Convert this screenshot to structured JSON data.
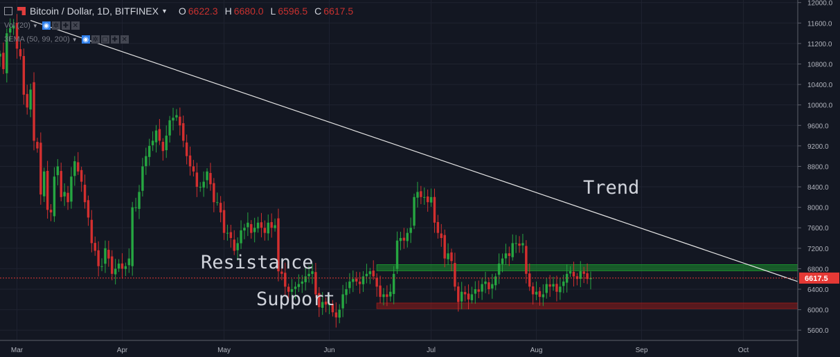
{
  "header": {
    "symbol": "Bitcoin / Dollar, 1D, BITFINEX",
    "open_label": "O",
    "open": "6622.3",
    "high_label": "H",
    "high": "6680.0",
    "low_label": "L",
    "low": "6596.5",
    "close_label": "C",
    "close": "6617.5"
  },
  "indicators": [
    {
      "label": "Vol (20)"
    },
    {
      "label": "3EMA (50, 99, 200)"
    }
  ],
  "annotations": {
    "trend": "Trend",
    "resistance": "Resistance",
    "support": "Support"
  },
  "colors": {
    "background": "#131722",
    "up": "#26a641",
    "down": "#d32f2f",
    "grid": "#1f2330",
    "trendline": "#e6e6e6",
    "resistance_zone": "#1b8f2e",
    "support_zone": "#8f1b1b",
    "price_line": "#e53935"
  },
  "chart_data": {
    "type": "candlestick",
    "title": "Bitcoin / Dollar, 1D, BITFINEX",
    "y_ticks": [
      12000,
      11600,
      11200,
      10800,
      10400,
      10000,
      9600,
      9200,
      8800,
      8400,
      8000,
      7600,
      7200,
      6800,
      6400,
      6000,
      5600
    ],
    "ylim": [
      5400,
      12050
    ],
    "y_labels": [
      "12000.0",
      "11600.0",
      "11200.0",
      "10800.0",
      "10400.0",
      "10000.0",
      "9600.0",
      "9200.0",
      "8800.0",
      "8400.0",
      "8000.0",
      "7600.0",
      "7200.0",
      "6800.0",
      "6400.0",
      "6000.0",
      "5600.0"
    ],
    "x_labels": [
      {
        "label": "Mar",
        "date": "2018-03-01"
      },
      {
        "label": "Apr",
        "date": "2018-04-01"
      },
      {
        "label": "May",
        "date": "2018-05-01"
      },
      {
        "label": "Jun",
        "date": "2018-06-01"
      },
      {
        "label": "Jul",
        "date": "2018-07-01"
      },
      {
        "label": "Aug",
        "date": "2018-08-01"
      },
      {
        "label": "Sep",
        "date": "2018-09-01"
      },
      {
        "label": "Oct",
        "date": "2018-10-01"
      }
    ],
    "x_range": [
      "2018-02-24",
      "2018-10-17"
    ],
    "last_price": 6617.5,
    "last_price_label": "6617.5",
    "trendline": {
      "from": [
        "2018-03-05",
        11650
      ],
      "to": [
        "2018-10-17",
        6550
      ]
    },
    "resistance_zone": {
      "from": "2018-06-15",
      "to": "2018-10-17",
      "low": 6760,
      "high": 6880
    },
    "support_zone": {
      "from": "2018-06-15",
      "to": "2018-10-17",
      "low": 6020,
      "high": 6130
    },
    "closes": [
      11000,
      10700,
      11400,
      11500,
      11550,
      11100,
      10950,
      10200,
      9950,
      10300,
      9300,
      9150,
      8250,
      8700,
      7950,
      7900,
      8600,
      8800,
      8200,
      8300,
      8100,
      8600,
      8900,
      8700,
      8500,
      8100,
      7800,
      7300,
      7150,
      6850,
      6850,
      7200,
      7000,
      6700,
      6800,
      6900,
      6800,
      6850,
      7000,
      8000,
      8000,
      8300,
      8800,
      9000,
      9200,
      9300,
      9500,
      9300,
      9100,
      9400,
      9700,
      9750,
      9800,
      9600,
      9300,
      9000,
      8800,
      8700,
      8400,
      8400,
      8500,
      8700,
      8450,
      8100,
      8100,
      7900,
      7500,
      7500,
      7400,
      7150,
      7300,
      7550,
      7600,
      7700,
      7500,
      7600,
      7700,
      7600,
      7500,
      7700,
      7600,
      7650,
      6750,
      6700,
      6450,
      6350,
      6400,
      6450,
      6500,
      6550,
      6650,
      6700,
      6750,
      6300,
      6050,
      6150,
      6100,
      6100,
      5950,
      5850,
      6000,
      6300,
      6400,
      6550,
      6600,
      6550,
      6500,
      6650,
      6700,
      6750,
      6650,
      6450,
      6250,
      6300,
      6250,
      6350,
      6700,
      7350,
      7400,
      7350,
      7500,
      7600,
      8200,
      8300,
      8200,
      8200,
      8100,
      8200,
      7700,
      7500,
      7400,
      7000,
      7100,
      6950,
      6450,
      6150,
      6350,
      6300,
      6200,
      6300,
      6400,
      6350,
      6500,
      6550,
      6400,
      6500,
      6650,
      6900,
      7000,
      7100,
      7050,
      7300,
      7300,
      7250,
      7300,
      6700,
      6450,
      6300,
      6350,
      6250,
      6300,
      6500,
      6450,
      6500,
      6350,
      6450,
      6550,
      6700,
      6750,
      6650,
      6600,
      6750,
      6700,
      6600,
      6620
    ]
  }
}
